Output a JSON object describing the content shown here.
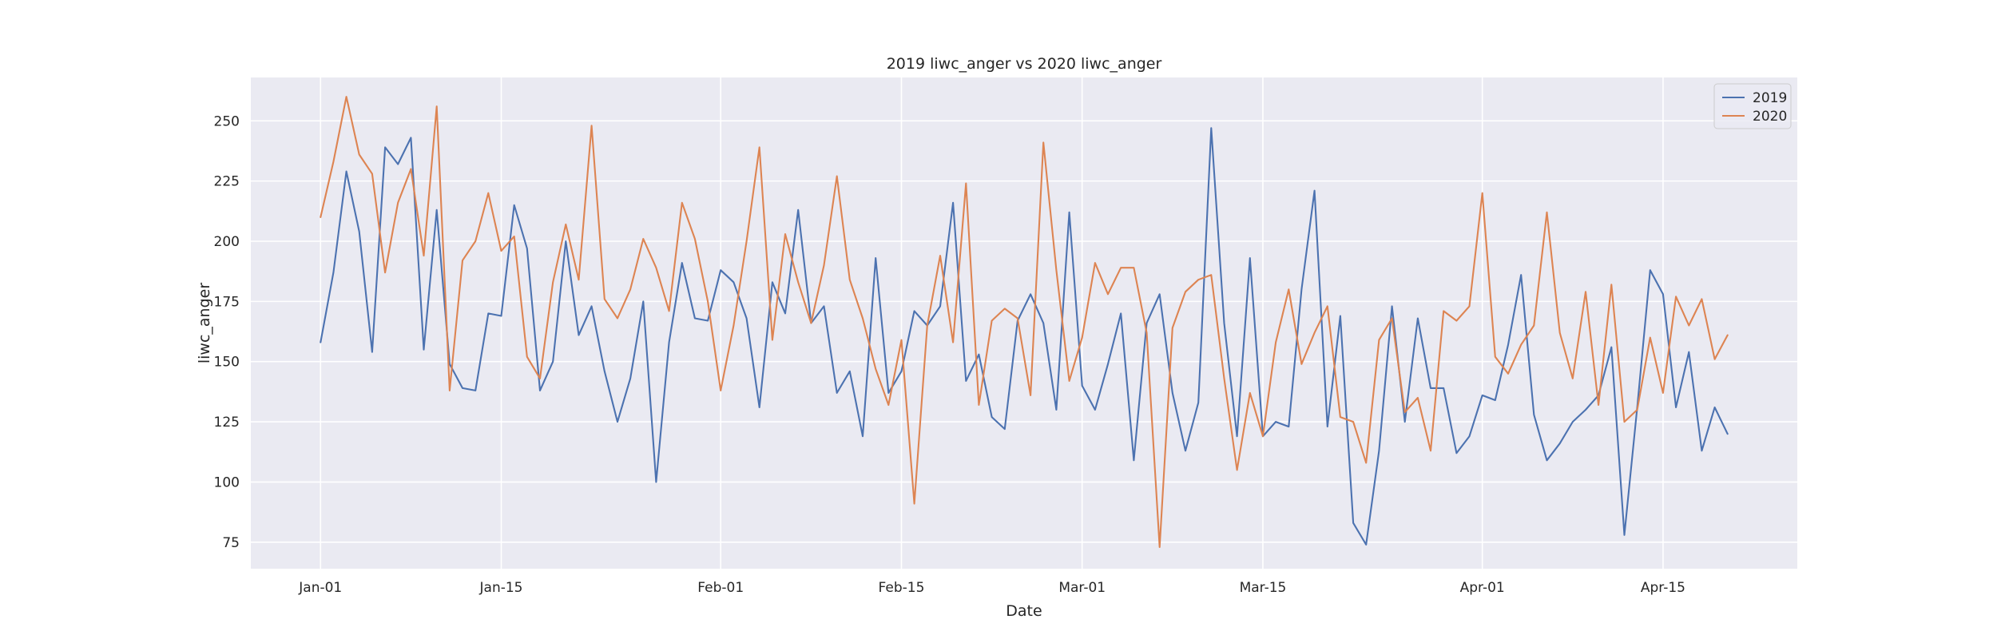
{
  "chart_data": {
    "type": "line",
    "title": "2019 liwc_anger vs 2020 liwc_anger",
    "xlabel": "Date",
    "ylabel": "liwc_anger",
    "x_ticks": [
      "Jan-01",
      "Jan-15",
      "Feb-01",
      "Feb-15",
      "Mar-01",
      "Mar-15",
      "Apr-01",
      "Apr-15"
    ],
    "x_tick_days": [
      1,
      15,
      32,
      46,
      60,
      74,
      91,
      105
    ],
    "y_ticks": [
      75,
      100,
      125,
      150,
      175,
      200,
      225,
      250
    ],
    "xlim": [
      -4.4,
      115.4
    ],
    "ylim": [
      64,
      268
    ],
    "grid": true,
    "legend_position": "top-right",
    "colors": {
      "background": "#eaeaf2",
      "grid": "#ffffff",
      "series_2019": "#4c72b0",
      "series_2020": "#dd8452"
    },
    "x_start_day": 1,
    "series": [
      {
        "name": "2019",
        "color": "#4c72b0",
        "values": [
          158,
          187,
          229,
          204,
          154,
          239,
          232,
          243,
          155,
          213,
          149,
          139,
          138,
          170,
          169,
          215,
          197,
          138,
          150,
          200,
          161,
          173,
          146,
          125,
          143,
          175,
          100,
          158,
          191,
          168,
          167,
          188,
          183,
          168,
          131,
          183,
          170,
          213,
          166,
          173,
          137,
          146,
          119,
          193,
          137,
          146,
          171,
          165,
          173,
          216,
          142,
          153,
          127,
          122,
          167,
          178,
          166,
          130,
          212,
          140,
          130,
          149,
          170,
          109,
          166,
          178,
          137,
          113,
          133,
          247,
          166,
          119,
          193,
          119,
          125,
          123,
          180,
          221,
          123,
          169,
          83,
          74,
          113,
          173,
          125,
          168,
          139,
          139,
          112,
          119,
          136,
          134,
          157,
          186,
          128,
          109,
          116,
          125,
          130,
          136,
          156,
          78,
          131,
          188,
          178,
          131,
          154,
          113,
          131,
          120
        ]
      },
      {
        "name": "2020",
        "color": "#dd8452",
        "values": [
          210,
          233,
          260,
          236,
          228,
          187,
          216,
          230,
          194,
          256,
          138,
          192,
          200,
          220,
          196,
          202,
          152,
          143,
          183,
          207,
          184,
          248,
          176,
          168,
          180,
          201,
          189,
          171,
          216,
          201,
          175,
          138,
          165,
          200,
          239,
          159,
          203,
          183,
          166,
          190,
          227,
          184,
          168,
          147,
          132,
          159,
          91,
          165,
          194,
          158,
          224,
          132,
          167,
          172,
          168,
          136,
          241,
          188,
          142,
          160,
          191,
          178,
          189,
          189,
          162,
          73,
          164,
          179,
          184,
          186,
          143,
          105,
          137,
          119,
          158,
          180,
          149,
          162,
          173,
          127,
          125,
          108,
          159,
          168,
          129,
          135,
          113,
          171,
          167,
          173,
          220,
          152,
          145,
          157,
          165,
          212,
          162,
          143,
          179,
          132,
          182,
          125,
          130,
          160,
          137,
          177,
          165,
          176,
          151,
          161
        ]
      }
    ]
  }
}
